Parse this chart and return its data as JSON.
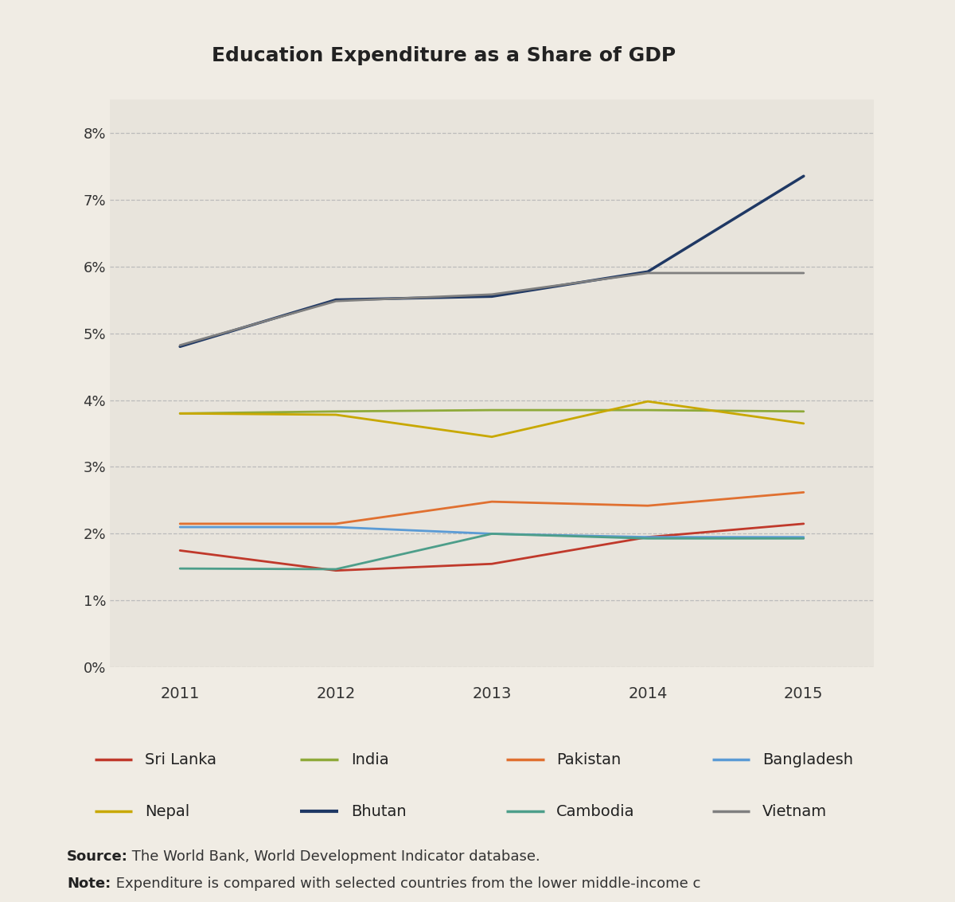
{
  "title": "Education Expenditure as a Share of GDP",
  "years": [
    2011,
    2012,
    2013,
    2014,
    2015
  ],
  "series": {
    "Sri Lanka": {
      "values": [
        1.75,
        1.45,
        1.55,
        1.95,
        2.15
      ],
      "color": "#c0392b",
      "linewidth": 2.0
    },
    "India": {
      "values": [
        3.8,
        3.83,
        3.85,
        3.85,
        3.83
      ],
      "color": "#8faa3a",
      "linewidth": 2.0
    },
    "Pakistan": {
      "values": [
        2.15,
        2.15,
        2.48,
        2.42,
        2.62
      ],
      "color": "#e07030",
      "linewidth": 2.0
    },
    "Bangladesh": {
      "values": [
        2.1,
        2.1,
        2.0,
        1.95,
        1.95
      ],
      "color": "#5b9bd5",
      "linewidth": 2.0
    },
    "Nepal": {
      "values": [
        3.8,
        3.78,
        3.45,
        3.98,
        3.65
      ],
      "color": "#c8a800",
      "linewidth": 2.0
    },
    "Bhutan": {
      "values": [
        4.8,
        5.5,
        5.55,
        5.92,
        7.35
      ],
      "color": "#1f3864",
      "linewidth": 2.5
    },
    "Cambodia": {
      "values": [
        1.48,
        1.47,
        2.0,
        1.93,
        1.93
      ],
      "color": "#4d9e8a",
      "linewidth": 2.0
    },
    "Vietnam": {
      "values": [
        4.82,
        5.48,
        5.58,
        5.9,
        5.9
      ],
      "color": "#7f7f7f",
      "linewidth": 2.0
    }
  },
  "ylim": [
    0,
    8.5
  ],
  "yticks": [
    0,
    1,
    2,
    3,
    4,
    5,
    6,
    7,
    8
  ],
  "ytick_labels": [
    "0%",
    "1%",
    "2%",
    "3%",
    "4%",
    "5%",
    "6%",
    "7%",
    "8%"
  ],
  "background_color": "#f0ece4",
  "plot_bg_color": "#e8e4dc",
  "xband_color": "#d8cfc0",
  "grid_color": "#bbbbbb",
  "legend_order": [
    "Sri Lanka",
    "India",
    "Pakistan",
    "Bangladesh",
    "Nepal",
    "Bhutan",
    "Cambodia",
    "Vietnam"
  ],
  "title_fontsize": 18,
  "tick_fontsize": 13,
  "legend_fontsize": 14,
  "source_fontsize": 13,
  "source_bold": "Source:",
  "source_rest": " The World Bank, World Development Indicator database.",
  "note_bold": "Note:",
  "note_rest": " Expenditure is compared with selected countries from the lower middle-income c"
}
